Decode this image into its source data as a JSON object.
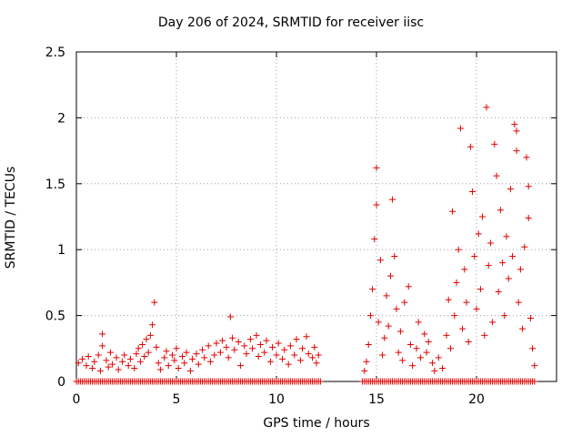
{
  "chart_data": {
    "type": "scatter",
    "title": "Day 206 of 2024, SRMTID for receiver iisc",
    "xlabel": "GPS time / hours",
    "ylabel": "SRMTID / TECUs",
    "xlim": [
      0,
      24
    ],
    "ylim": [
      0,
      2.5
    ],
    "xticks": [
      0,
      5,
      10,
      15,
      20
    ],
    "xtick_labels": [
      "0",
      "5",
      "10",
      "15",
      "20"
    ],
    "yticks": [
      0,
      0.5,
      1,
      1.5,
      2,
      2.5
    ],
    "ytick_labels": [
      "0",
      "0.5",
      "1",
      "1.5",
      "2",
      "2.5"
    ],
    "grid": true,
    "marker": "+",
    "series": [
      {
        "name": "SRMTID",
        "color": "#e00000",
        "points": [
          [
            0.1,
            0.14
          ],
          [
            0.3,
            0.17
          ],
          [
            0.5,
            0.12
          ],
          [
            0.6,
            0.19
          ],
          [
            0.8,
            0.1
          ],
          [
            0.9,
            0.15
          ],
          [
            1.1,
            0.2
          ],
          [
            1.2,
            0.08
          ],
          [
            1.3,
            0.36
          ],
          [
            1.3,
            0.27
          ],
          [
            1.5,
            0.16
          ],
          [
            1.6,
            0.11
          ],
          [
            1.7,
            0.22
          ],
          [
            1.8,
            0.13
          ],
          [
            2.0,
            0.18
          ],
          [
            2.1,
            0.09
          ],
          [
            2.3,
            0.15
          ],
          [
            2.4,
            0.2
          ],
          [
            2.6,
            0.12
          ],
          [
            2.7,
            0.17
          ],
          [
            2.9,
            0.1
          ],
          [
            3.0,
            0.21
          ],
          [
            3.1,
            0.25
          ],
          [
            3.2,
            0.15
          ],
          [
            3.3,
            0.28
          ],
          [
            3.4,
            0.19
          ],
          [
            3.5,
            0.32
          ],
          [
            3.6,
            0.22
          ],
          [
            3.7,
            0.35
          ],
          [
            3.8,
            0.43
          ],
          [
            3.9,
            0.6
          ],
          [
            4.0,
            0.26
          ],
          [
            4.1,
            0.14
          ],
          [
            4.2,
            0.09
          ],
          [
            4.4,
            0.18
          ],
          [
            4.5,
            0.23
          ],
          [
            4.6,
            0.12
          ],
          [
            4.8,
            0.2
          ],
          [
            4.9,
            0.16
          ],
          [
            5.0,
            0.25
          ],
          [
            5.1,
            0.1
          ],
          [
            5.3,
            0.19
          ],
          [
            5.4,
            0.14
          ],
          [
            5.5,
            0.22
          ],
          [
            5.7,
            0.08
          ],
          [
            5.8,
            0.17
          ],
          [
            6.0,
            0.21
          ],
          [
            6.1,
            0.13
          ],
          [
            6.3,
            0.24
          ],
          [
            6.4,
            0.18
          ],
          [
            6.6,
            0.27
          ],
          [
            6.7,
            0.15
          ],
          [
            6.9,
            0.2
          ],
          [
            7.0,
            0.29
          ],
          [
            7.2,
            0.22
          ],
          [
            7.3,
            0.31
          ],
          [
            7.5,
            0.26
          ],
          [
            7.6,
            0.18
          ],
          [
            7.7,
            0.49
          ],
          [
            7.8,
            0.33
          ],
          [
            7.9,
            0.24
          ],
          [
            8.1,
            0.3
          ],
          [
            8.2,
            0.12
          ],
          [
            8.4,
            0.27
          ],
          [
            8.5,
            0.21
          ],
          [
            8.7,
            0.32
          ],
          [
            8.8,
            0.25
          ],
          [
            9.0,
            0.35
          ],
          [
            9.1,
            0.19
          ],
          [
            9.2,
            0.28
          ],
          [
            9.4,
            0.22
          ],
          [
            9.5,
            0.31
          ],
          [
            9.7,
            0.15
          ],
          [
            9.8,
            0.26
          ],
          [
            10.0,
            0.2
          ],
          [
            10.1,
            0.29
          ],
          [
            10.3,
            0.17
          ],
          [
            10.4,
            0.24
          ],
          [
            10.6,
            0.13
          ],
          [
            10.7,
            0.27
          ],
          [
            10.9,
            0.2
          ],
          [
            11.0,
            0.32
          ],
          [
            11.2,
            0.16
          ],
          [
            11.3,
            0.25
          ],
          [
            11.5,
            0.34
          ],
          [
            11.6,
            0.21
          ],
          [
            11.8,
            0.18
          ],
          [
            11.9,
            0.26
          ],
          [
            12.0,
            0.14
          ],
          [
            12.1,
            0.2
          ],
          [
            14.4,
            0.08
          ],
          [
            14.5,
            0.15
          ],
          [
            14.6,
            0.28
          ],
          [
            14.7,
            0.5
          ],
          [
            14.8,
            0.7
          ],
          [
            14.9,
            1.08
          ],
          [
            15.0,
            1.34
          ],
          [
            15.0,
            1.62
          ],
          [
            15.1,
            0.45
          ],
          [
            15.2,
            0.92
          ],
          [
            15.3,
            0.2
          ],
          [
            15.4,
            0.33
          ],
          [
            15.5,
            0.65
          ],
          [
            15.6,
            0.42
          ],
          [
            15.7,
            0.8
          ],
          [
            15.8,
            1.38
          ],
          [
            15.9,
            0.95
          ],
          [
            16.0,
            0.55
          ],
          [
            16.1,
            0.22
          ],
          [
            16.2,
            0.38
          ],
          [
            16.3,
            0.16
          ],
          [
            16.4,
            0.6
          ],
          [
            16.6,
            0.72
          ],
          [
            16.7,
            0.28
          ],
          [
            16.8,
            0.12
          ],
          [
            17.0,
            0.25
          ],
          [
            17.1,
            0.45
          ],
          [
            17.2,
            0.18
          ],
          [
            17.4,
            0.36
          ],
          [
            17.5,
            0.22
          ],
          [
            17.6,
            0.3
          ],
          [
            17.8,
            0.14
          ],
          [
            17.9,
            0.08
          ],
          [
            18.1,
            0.18
          ],
          [
            18.3,
            0.1
          ],
          [
            18.5,
            0.35
          ],
          [
            18.6,
            0.62
          ],
          [
            18.7,
            0.25
          ],
          [
            18.8,
            1.29
          ],
          [
            18.9,
            0.5
          ],
          [
            19.0,
            0.75
          ],
          [
            19.1,
            1.0
          ],
          [
            19.2,
            1.92
          ],
          [
            19.3,
            0.4
          ],
          [
            19.4,
            0.85
          ],
          [
            19.5,
            0.6
          ],
          [
            19.6,
            0.3
          ],
          [
            19.7,
            1.78
          ],
          [
            19.8,
            1.44
          ],
          [
            19.9,
            0.95
          ],
          [
            20.0,
            0.55
          ],
          [
            20.1,
            1.12
          ],
          [
            20.2,
            0.7
          ],
          [
            20.3,
            1.25
          ],
          [
            20.4,
            0.35
          ],
          [
            20.5,
            2.08
          ],
          [
            20.6,
            0.88
          ],
          [
            20.7,
            1.05
          ],
          [
            20.8,
            0.45
          ],
          [
            20.9,
            1.8
          ],
          [
            21.0,
            1.56
          ],
          [
            21.1,
            0.68
          ],
          [
            21.2,
            1.3
          ],
          [
            21.3,
            0.9
          ],
          [
            21.4,
            0.5
          ],
          [
            21.5,
            1.1
          ],
          [
            21.6,
            0.78
          ],
          [
            21.7,
            1.46
          ],
          [
            21.8,
            0.95
          ],
          [
            21.9,
            1.95
          ],
          [
            22.0,
            1.75
          ],
          [
            22.0,
            1.9
          ],
          [
            22.1,
            0.6
          ],
          [
            22.2,
            0.85
          ],
          [
            22.3,
            0.4
          ],
          [
            22.4,
            1.02
          ],
          [
            22.5,
            1.7
          ],
          [
            22.6,
            1.48
          ],
          [
            22.6,
            1.24
          ],
          [
            22.7,
            0.48
          ],
          [
            22.8,
            0.25
          ],
          [
            22.9,
            0.12
          ]
        ]
      }
    ],
    "zero_points": {
      "from": 0.0,
      "to": 22.9,
      "step": 0.1,
      "gap": [
        12.2,
        14.3
      ],
      "y": 0
    }
  }
}
